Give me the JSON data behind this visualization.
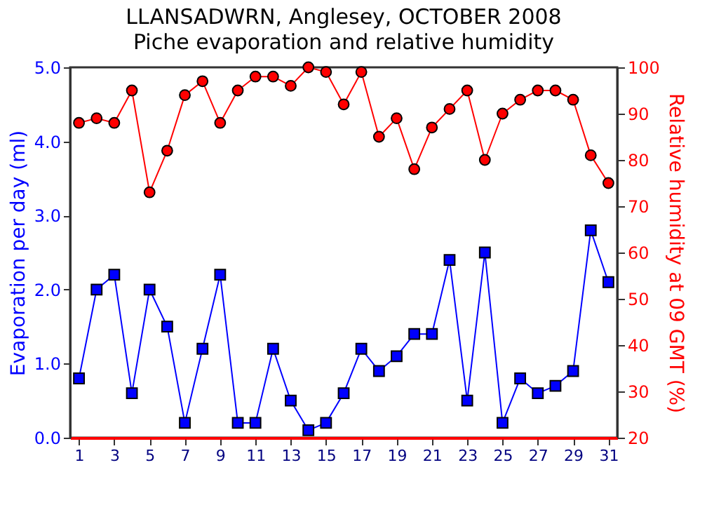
{
  "chart_data": {
    "type": "line",
    "title": "LLANSADWRN, Anglesey, OCTOBER 2008",
    "subtitle": "Piche evaporation and relative humidity",
    "ylabel": "Evaporation per day (ml)",
    "y2label": "Relative humidity at 09 GMT (%)",
    "x": [
      1,
      2,
      3,
      4,
      5,
      6,
      7,
      8,
      9,
      10,
      11,
      12,
      13,
      14,
      15,
      16,
      17,
      18,
      19,
      20,
      21,
      22,
      23,
      24,
      25,
      26,
      27,
      28,
      29,
      30,
      31
    ],
    "xlim": [
      0.5,
      31.5
    ],
    "xticks": [
      1,
      3,
      5,
      7,
      9,
      11,
      13,
      15,
      17,
      19,
      21,
      23,
      25,
      27,
      29,
      31
    ],
    "ylim": [
      0,
      5
    ],
    "yticks": [
      {
        "value": 0,
        "label": "0.0"
      },
      {
        "value": 1,
        "label": "1.0"
      },
      {
        "value": 2,
        "label": "2.0"
      },
      {
        "value": 3,
        "label": "3.0"
      },
      {
        "value": 4,
        "label": "4.0"
      },
      {
        "value": 5,
        "label": "5.0"
      }
    ],
    "y2lim": [
      20,
      100
    ],
    "y2ticks": [
      20,
      30,
      40,
      50,
      60,
      70,
      80,
      90,
      100
    ],
    "grid": false,
    "series": [
      {
        "color": "#0000ff",
        "marker": "square",
        "values": [
          0.8,
          2.0,
          2.2,
          0.6,
          2.0,
          1.5,
          0.2,
          1.2,
          2.2,
          0.2,
          0.2,
          1.2,
          0.5,
          0.1,
          0.2,
          0.6,
          1.2,
          0.9,
          1.1,
          1.4,
          1.4,
          2.4,
          0.5,
          2.5,
          0.2,
          0.8,
          0.6,
          0.7,
          0.9,
          2.8,
          2.1
        ]
      },
      {
        "color": "#ff0000",
        "marker": "circle",
        "axis": "y2",
        "values": [
          88,
          89,
          88,
          95,
          73,
          82,
          94,
          97,
          88,
          95,
          98,
          98,
          96,
          100,
          99,
          92,
          99,
          85,
          89,
          78,
          87,
          91,
          95,
          80,
          90,
          93,
          95,
          95,
          93,
          81,
          75
        ]
      }
    ]
  }
}
